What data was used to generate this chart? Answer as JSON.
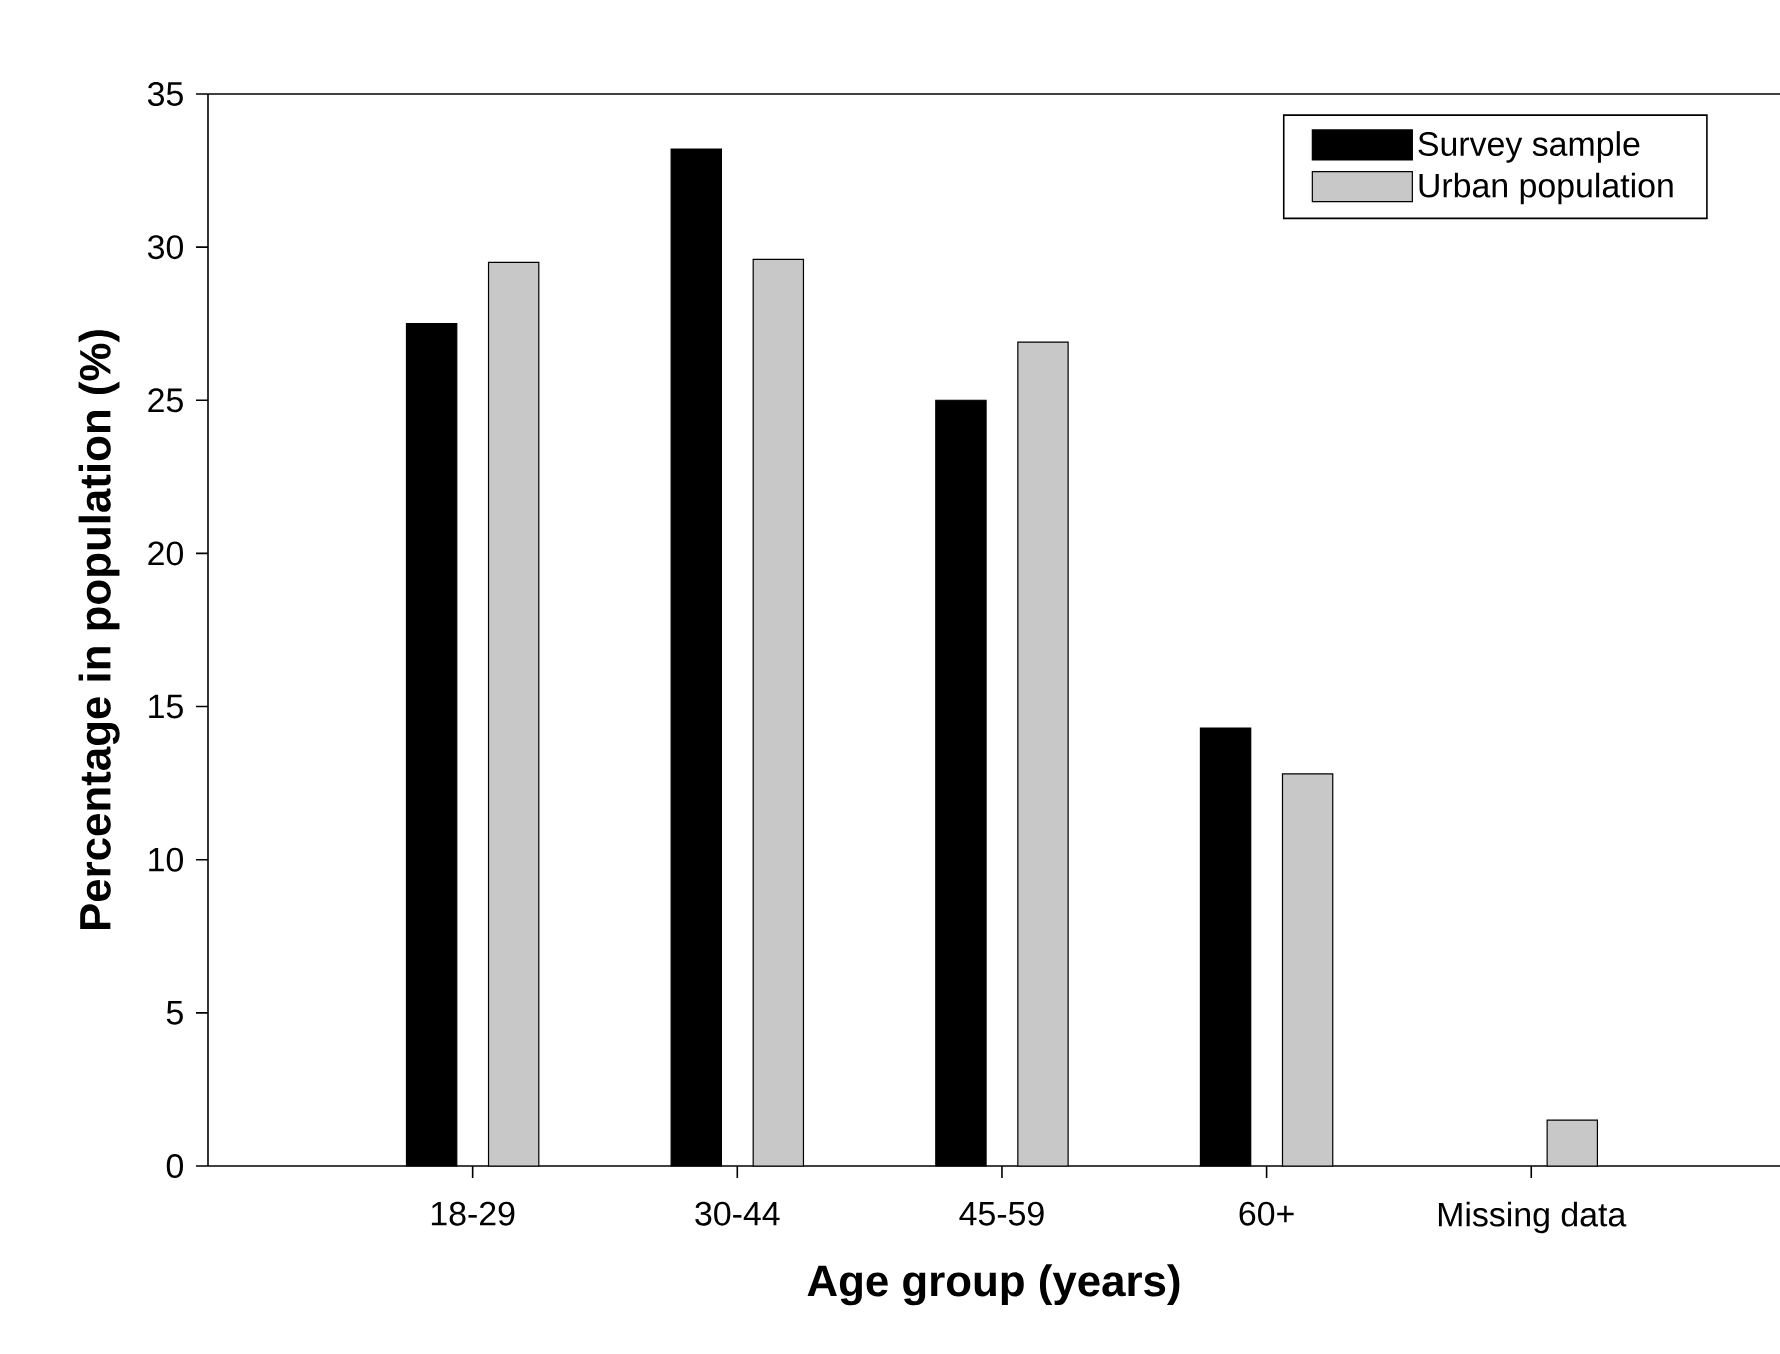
{
  "chart_data": {
    "type": "bar",
    "xlabel": "Age group (years)",
    "ylabel": "Percentage in population (%)",
    "categories": [
      "18-29",
      "30-44",
      "45-59",
      "60+",
      "Missing data"
    ],
    "series": [
      {
        "name": "Survey sample",
        "color": "#000000",
        "values": [
          27.5,
          33.2,
          25.0,
          14.3,
          null
        ]
      },
      {
        "name": "Urban population",
        "color": "#c8c8c8",
        "values": [
          29.5,
          29.6,
          26.9,
          12.8,
          1.5
        ]
      }
    ],
    "ylim": [
      0,
      35
    ],
    "yticks": [
      0,
      5,
      10,
      15,
      20,
      25,
      30,
      35
    ],
    "legend": "top right"
  }
}
